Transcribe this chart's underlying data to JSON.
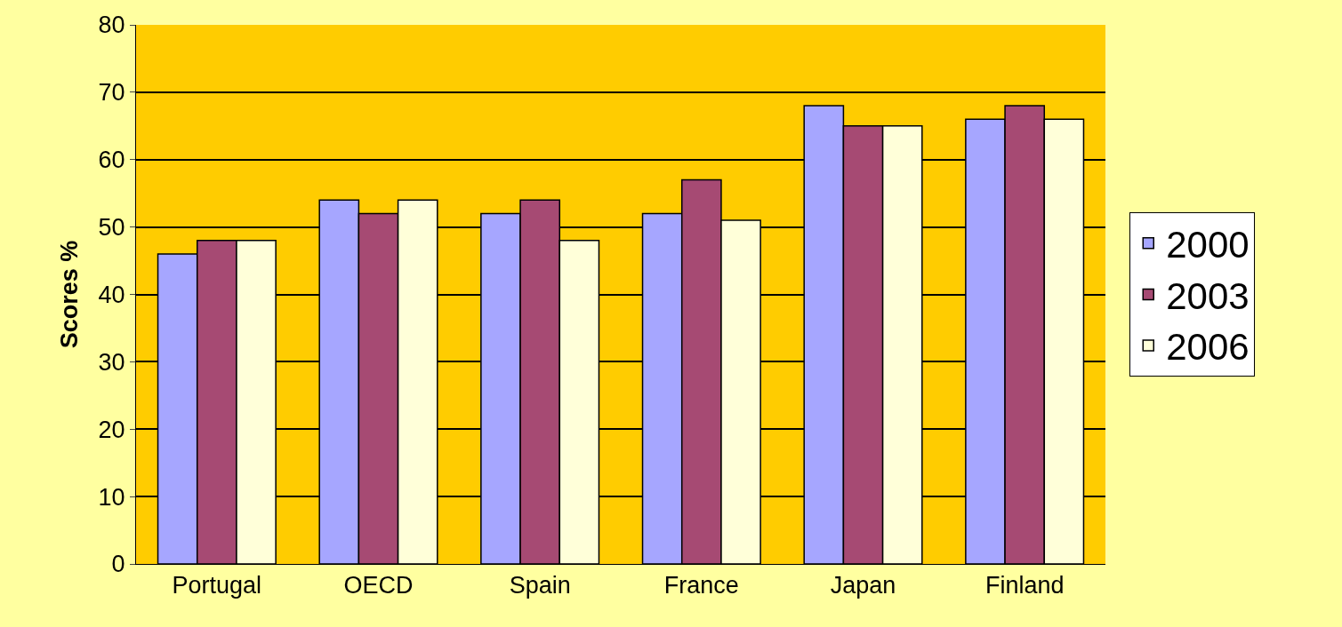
{
  "chart_data": {
    "type": "bar",
    "ylabel": "Scores %",
    "categories": [
      "Portugal",
      "OECD",
      "Spain",
      "France",
      "Japan",
      "Finland"
    ],
    "series": [
      {
        "name": "2000",
        "color": "#a6a6ff",
        "values": [
          46,
          54,
          52,
          52,
          68,
          66
        ]
      },
      {
        "name": "2003",
        "color": "#a64a73",
        "values": [
          48,
          52,
          54,
          57,
          65,
          68
        ]
      },
      {
        "name": "2006",
        "color": "#ffffd9",
        "values": [
          48,
          54,
          48,
          51,
          65,
          66
        ]
      }
    ],
    "ylim": [
      0,
      80
    ],
    "yticks": [
      0,
      10,
      20,
      30,
      40,
      50,
      60,
      70,
      80
    ],
    "grid": "y",
    "legend": "right"
  }
}
